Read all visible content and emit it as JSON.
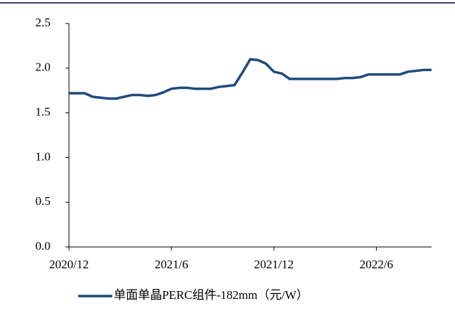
{
  "chart_data": {
    "type": "line",
    "categories": [
      "2020/12",
      null,
      null,
      null,
      null,
      null,
      null,
      null,
      null,
      null,
      null,
      null,
      null,
      "2021/6",
      null,
      null,
      null,
      null,
      null,
      null,
      null,
      null,
      null,
      null,
      null,
      null,
      "2021/12",
      null,
      null,
      null,
      null,
      null,
      null,
      null,
      null,
      null,
      null,
      null,
      null,
      "2022/6",
      null,
      null,
      null,
      null,
      null,
      null,
      null
    ],
    "series": [
      {
        "name": "单面单晶PERC组件-182mm（元/W）",
        "color": "#1f497d",
        "values": [
          1.72,
          1.72,
          1.72,
          1.68,
          1.67,
          1.66,
          1.66,
          1.68,
          1.7,
          1.7,
          1.69,
          1.7,
          1.73,
          1.77,
          1.78,
          1.78,
          1.77,
          1.77,
          1.77,
          1.79,
          1.8,
          1.81,
          1.95,
          2.1,
          2.09,
          2.05,
          1.96,
          1.94,
          1.88,
          1.88,
          1.88,
          1.88,
          1.88,
          1.88,
          1.88,
          1.89,
          1.89,
          1.9,
          1.93,
          1.93,
          1.93,
          1.93,
          1.93,
          1.96,
          1.97,
          1.98,
          1.98
        ]
      }
    ],
    "ylim": [
      0,
      2.5
    ],
    "yticks": [
      {
        "value": 0,
        "label": "0.0"
      },
      {
        "value": 0.5,
        "label": "0.5"
      },
      {
        "value": 1,
        "label": "1.0"
      },
      {
        "value": 1.5,
        "label": "1.5"
      },
      {
        "value": 2,
        "label": "2.0"
      },
      {
        "value": 2.5,
        "label": "2.5"
      }
    ],
    "legend": "bottom"
  }
}
